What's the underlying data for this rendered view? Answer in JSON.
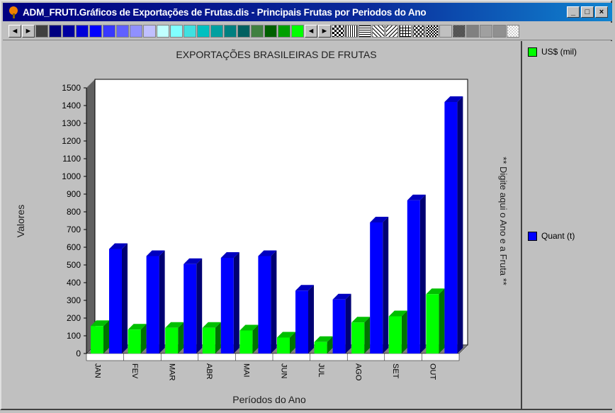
{
  "window": {
    "title": "ADM_FRUTI.Gráficos de Exportações de Frutas.dis - Principais Frutas por Periodos do Ano",
    "buttons": [
      "_",
      "□",
      "×"
    ]
  },
  "palette": {
    "nav_left": "◄",
    "nav_right": "►",
    "colors": [
      "#404040",
      "#000080",
      "#0000a0",
      "#0000d8",
      "#0000ff",
      "#3838ff",
      "#6060ff",
      "#9090ff",
      "#c0c0ff",
      "#c0ffff",
      "#80ffff",
      "#40e0e0",
      "#00c0c0",
      "#00a0a0",
      "#008080",
      "#006060",
      "#408040",
      "#006000",
      "#00a000",
      "#00ff00"
    ],
    "nav2_left": "◄",
    "nav2_right": "►",
    "patterns": [
      "checker",
      "vlines",
      "hlines",
      "diag",
      "diag2",
      "grid",
      "cross",
      "checker2",
      "blank",
      "dense",
      "gray1",
      "gray2",
      "gray3",
      "light"
    ]
  },
  "chart_data": {
    "type": "bar",
    "title": "EXPORTAÇÕES BRASILEIRAS DE FRUTAS",
    "xlabel": "Períodos do Ano",
    "ylabel": "Valores",
    "side_note": "** Digite aqui o Ano e a Fruta **",
    "categories": [
      "JAN",
      "FEV",
      "MAR",
      "ABR",
      "MAI",
      "JUN",
      "JUL",
      "AGO",
      "SET",
      "OUT"
    ],
    "ylim": [
      0,
      1500
    ],
    "yticks": [
      0,
      100,
      200,
      300,
      400,
      500,
      600,
      700,
      800,
      900,
      1000,
      1100,
      1200,
      1300,
      1400,
      1500
    ],
    "grid": false,
    "legend_position": "right",
    "series": [
      {
        "name": "US$ (mil)",
        "color": "#00ff00",
        "values": [
          155,
          135,
          145,
          145,
          130,
          90,
          65,
          175,
          210,
          335
        ]
      },
      {
        "name": "Quant (t)",
        "color": "#0000ff",
        "values": [
          590,
          550,
          505,
          540,
          550,
          355,
          305,
          740,
          865,
          1420
        ]
      }
    ]
  }
}
